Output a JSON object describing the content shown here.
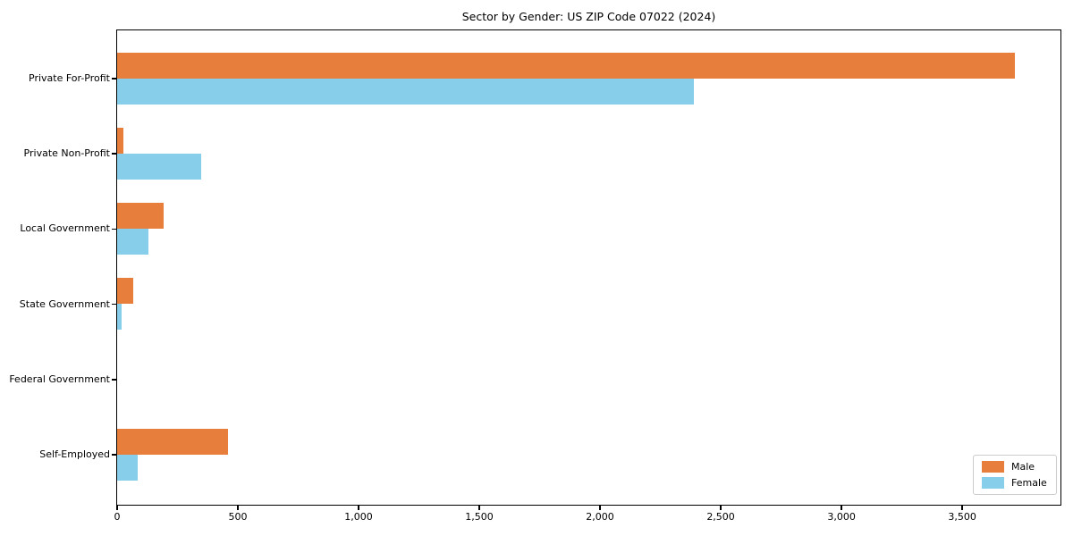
{
  "title": "Sector by Gender: US ZIP Code 07022 (2024)",
  "colors": {
    "male": "#E87E3C",
    "female": "#87CEEB",
    "axis": "#000000",
    "legend_border": "#cccccc",
    "background": "#ffffff"
  },
  "legend": {
    "position": "lower right",
    "items": [
      {
        "label": "Male",
        "color": "#E87E3C"
      },
      {
        "label": "Female",
        "color": "#87CEEB"
      }
    ]
  },
  "chart_data": {
    "type": "bar",
    "orientation": "horizontal",
    "title": "Sector by Gender: US ZIP Code 07022 (2024)",
    "categories": [
      "Private For-Profit",
      "Private Non-Profit",
      "Local Government",
      "State Government",
      "Federal Government",
      "Self-Employed"
    ],
    "series": [
      {
        "name": "Male",
        "color": "#E87E3C",
        "values": [
          3720,
          28,
          195,
          67,
          0,
          462
        ]
      },
      {
        "name": "Female",
        "color": "#87CEEB",
        "values": [
          2390,
          350,
          130,
          21,
          0,
          88
        ]
      }
    ],
    "xlabel": "",
    "ylabel": "",
    "xlim": [
      0,
      3907
    ],
    "xticks": [
      0,
      500,
      1000,
      1500,
      2000,
      2500,
      3000,
      3500
    ],
    "xtick_labels": [
      "0",
      "500",
      "1,000",
      "1,500",
      "2,000",
      "2,500",
      "3,000",
      "3,500"
    ],
    "grid": false,
    "plot_frame": true
  }
}
